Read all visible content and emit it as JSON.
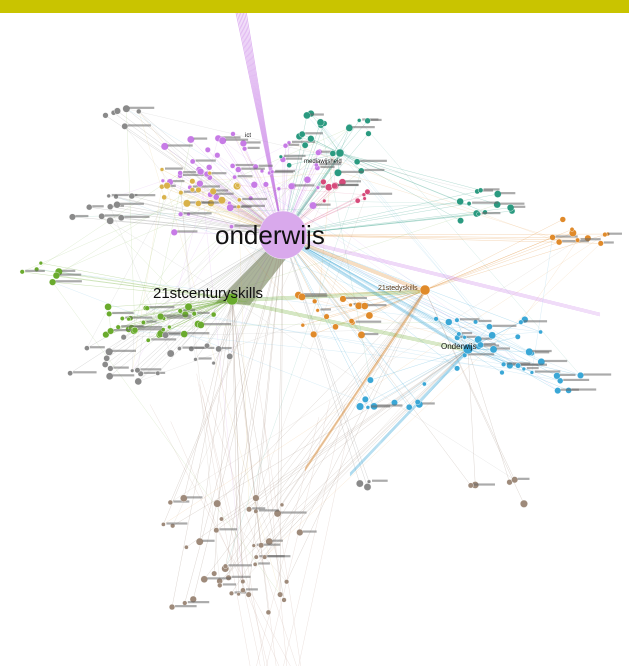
{
  "banner": {
    "color": "#c9c400"
  },
  "graph": {
    "labels": {
      "main_hub": "onderwijs",
      "second_hub": "21stcenturyskills",
      "hub_21edu": "21stedyskills",
      "hub_onderwijs2": "Onderwijs",
      "hub_mediawijs": "mediawijsheid",
      "hub_ict": "ict"
    },
    "colors": {
      "purple": "#c77be6",
      "green": "#6aab2d",
      "orange": "#e08a2a",
      "blue": "#3aa7d6",
      "teal": "#2a9a80",
      "pink": "#d64a7a",
      "gold": "#d9b24a",
      "gray": "#8a8a8a",
      "brown": "#9e8a7a",
      "light_purple": "#d9a9ec",
      "light_brown": "#d9c6bd"
    }
  }
}
